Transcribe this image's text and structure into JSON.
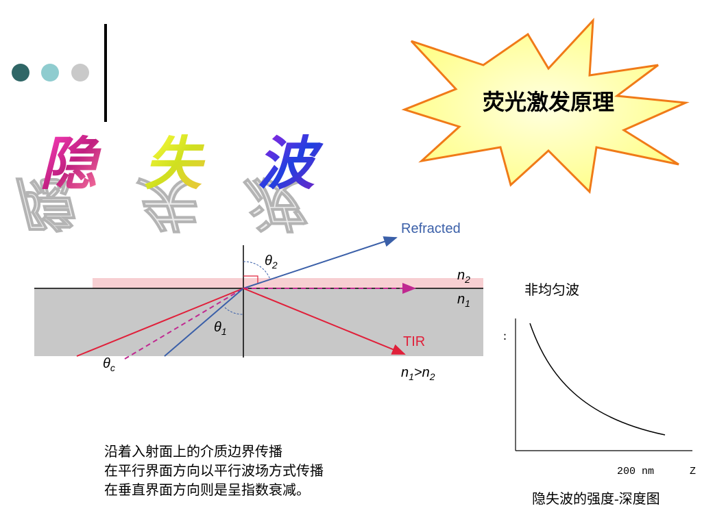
{
  "star_label": "荧光激发原理",
  "title_chars": [
    "隐",
    "失",
    "波"
  ],
  "diagram": {
    "refracted": "Refracted",
    "theta_2": {
      "main": "θ",
      "sub": "2"
    },
    "theta_1": {
      "main": "θ",
      "sub": "1"
    },
    "theta_c": {
      "main": "θ",
      "sub": "c"
    },
    "n_2": {
      "main": "n",
      "sub": "2"
    },
    "n_1": {
      "main": "n",
      "sub": "1"
    },
    "tir": "TIR",
    "condition": [
      {
        "main": "n",
        "sub": "1"
      },
      {
        "main": ">n",
        "sub": "2"
      }
    ]
  },
  "graph": {
    "heading": "非均匀波",
    "mark": ":",
    "x_label": "200 nm",
    "axis_label": "Z",
    "caption": "隐失波的强度-深度图"
  },
  "body_lines": [
    "沿着入射面上的介质边界传播",
    "在平行界面方向以平行波场方式传播",
    "在垂直界面方向则是呈指数衰减。"
  ]
}
